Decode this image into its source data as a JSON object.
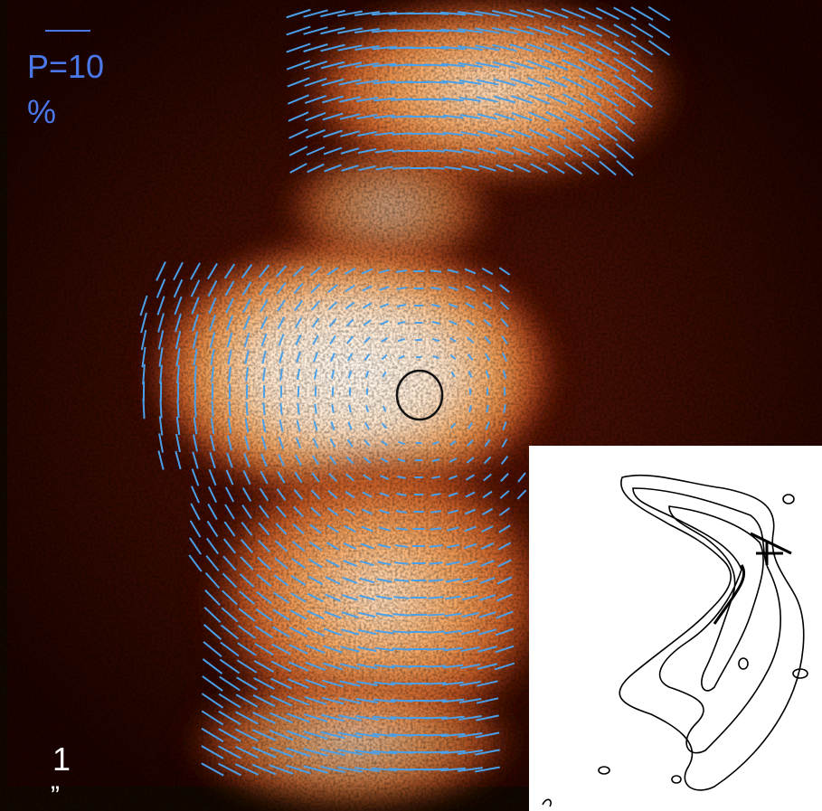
{
  "labels": {
    "polarization_scale": "P=10",
    "polarization_unit": "%",
    "angular_scale": "1",
    "angular_unit": "”"
  }
}
